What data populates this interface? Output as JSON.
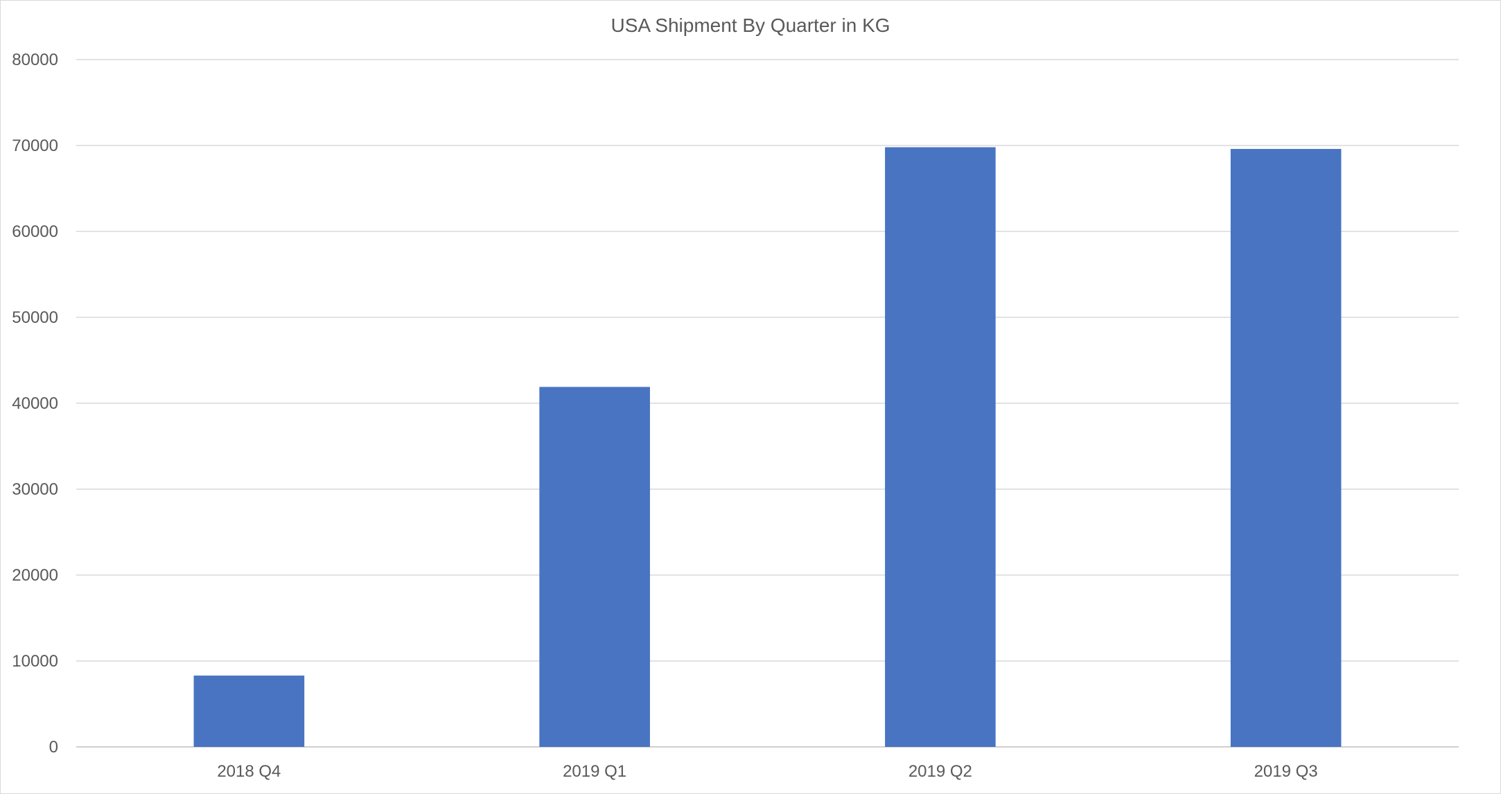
{
  "chart_data": {
    "type": "bar",
    "title": "USA Shipment By Quarter in KG",
    "xlabel": "",
    "ylabel": "",
    "categories": [
      "2018 Q4",
      "2019 Q1",
      "2019 Q2",
      "2019 Q3"
    ],
    "values": [
      8300,
      41900,
      69800,
      69600
    ],
    "ylim": [
      0,
      80000
    ],
    "yticks": [
      0,
      10000,
      20000,
      30000,
      40000,
      50000,
      60000,
      70000,
      80000
    ],
    "grid": true,
    "legend": "none",
    "colors": {
      "bar": "#4874c2",
      "grid": "#d9d9d9",
      "text": "#595959"
    }
  }
}
